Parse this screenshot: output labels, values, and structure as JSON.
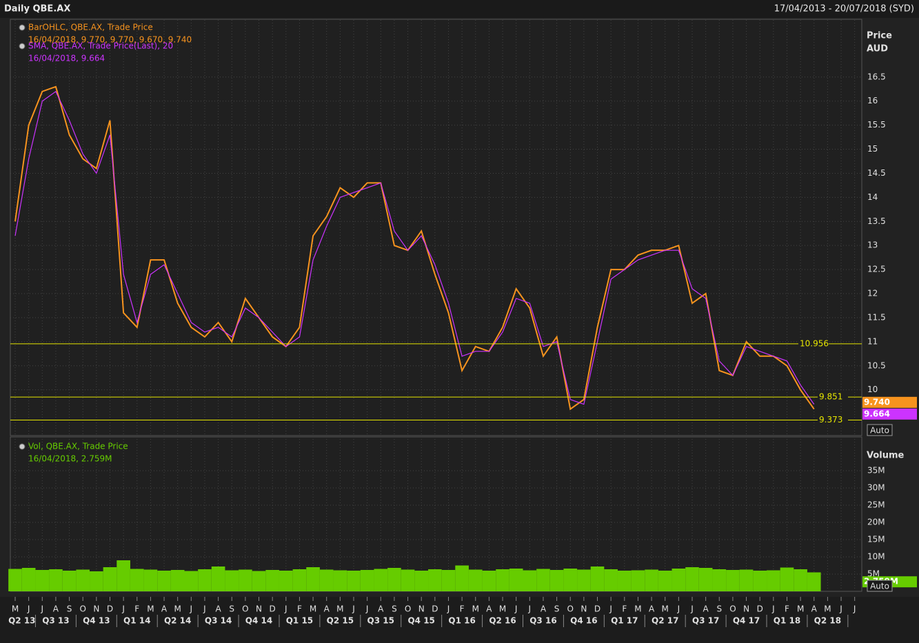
{
  "header": {
    "title": "Daily QBE.AX",
    "range": "17/04/2013 - 20/07/2018 (SYD)"
  },
  "chart_data": [
    {
      "type": "line",
      "axis_title": [
        "Price",
        "AUD"
      ],
      "categories": [
        "M",
        "J",
        "J",
        "A",
        "S",
        "O",
        "N",
        "D",
        "J",
        "F",
        "M",
        "A",
        "M",
        "J",
        "J",
        "A",
        "S",
        "O",
        "N",
        "D",
        "J",
        "F",
        "M",
        "A",
        "M",
        "J",
        "J",
        "A",
        "S",
        "O",
        "N",
        "D",
        "J",
        "F",
        "M",
        "A",
        "M",
        "J",
        "J",
        "A",
        "S",
        "O",
        "N",
        "D",
        "J",
        "F",
        "M",
        "A",
        "M",
        "J",
        "J",
        "A",
        "S",
        "O",
        "N",
        "D",
        "J",
        "F",
        "M",
        "A",
        "M",
        "J",
        "J"
      ],
      "quarters": [
        "Q2 13",
        "Q3 13",
        "Q4 13",
        "Q1 14",
        "Q2 14",
        "Q3 14",
        "Q4 14",
        "Q1 15",
        "Q2 15",
        "Q3 15",
        "Q4 15",
        "Q1 16",
        "Q2 16",
        "Q3 16",
        "Q4 16",
        "Q1 17",
        "Q2 17",
        "Q3 17",
        "Q4 17",
        "Q1 18",
        "Q2 18"
      ],
      "series": [
        {
          "name": "BarOHLC, QBE.AX, Trade Price",
          "legend_value": "16/04/2018, 9.770, 9.770, 9.670, 9.740",
          "color": "#f7931e",
          "values": [
            13.5,
            15.5,
            16.2,
            16.3,
            15.3,
            14.8,
            14.6,
            15.6,
            11.6,
            11.3,
            12.7,
            12.7,
            11.8,
            11.3,
            11.1,
            11.4,
            11.0,
            11.9,
            11.5,
            11.1,
            10.9,
            11.3,
            13.2,
            13.6,
            14.2,
            14.0,
            14.3,
            14.3,
            13.0,
            12.9,
            13.3,
            12.4,
            11.6,
            10.4,
            10.9,
            10.8,
            11.3,
            12.1,
            11.7,
            10.7,
            11.1,
            9.6,
            9.8,
            11.3,
            12.5,
            12.5,
            12.8,
            12.9,
            12.9,
            13.0,
            11.8,
            12.0,
            10.4,
            10.3,
            11.0,
            10.7,
            10.7,
            10.5,
            10.0,
            9.6,
            null,
            null,
            null
          ]
        },
        {
          "name": "SMA, QBE.AX, Trade Price(Last),  20",
          "legend_value": "16/04/2018, 9.664",
          "color": "#cc33ff",
          "values": [
            13.2,
            14.8,
            16.0,
            16.2,
            15.6,
            14.9,
            14.5,
            15.3,
            12.4,
            11.4,
            12.4,
            12.6,
            12.0,
            11.4,
            11.2,
            11.3,
            11.1,
            11.7,
            11.5,
            11.2,
            10.9,
            11.1,
            12.7,
            13.4,
            14.0,
            14.1,
            14.2,
            14.3,
            13.3,
            12.9,
            13.2,
            12.6,
            11.8,
            10.7,
            10.8,
            10.8,
            11.2,
            11.9,
            11.8,
            10.9,
            11.0,
            9.8,
            9.7,
            11.0,
            12.3,
            12.5,
            12.7,
            12.8,
            12.9,
            12.9,
            12.1,
            11.9,
            10.6,
            10.3,
            10.9,
            10.8,
            10.7,
            10.6,
            10.1,
            9.7,
            null,
            null,
            null
          ]
        }
      ],
      "ylim": [
        9.05,
        17.7
      ],
      "yticks": [
        10,
        10.5,
        11,
        11.5,
        12,
        12.5,
        13,
        13.5,
        14,
        14.5,
        15,
        15.5,
        16,
        16.5
      ],
      "grid": true,
      "levels": [
        10.956,
        9.851,
        9.373
      ],
      "level_color": "#e6e600",
      "last_values": [
        {
          "value": 9.74,
          "label": "9.740"
        },
        {
          "value": 9.664,
          "label": "9.664"
        }
      ],
      "scale_button": "Auto"
    },
    {
      "type": "bar",
      "axis_title": "Volume",
      "series": [
        {
          "name": "Vol, QBE.AX, Trade Price",
          "legend_value": "16/04/2018, 2.759M",
          "color": "#66cc00",
          "values": [
            6500000,
            6800000,
            6200000,
            6400000,
            6000000,
            6300000,
            5800000,
            7000000,
            9000000,
            6500000,
            6300000,
            6000000,
            6200000,
            5900000,
            6400000,
            7200000,
            6100000,
            6300000,
            5900000,
            6200000,
            6000000,
            6400000,
            7000000,
            6300000,
            6100000,
            6000000,
            6200000,
            6500000,
            6800000,
            6300000,
            6000000,
            6400000,
            6200000,
            7500000,
            6300000,
            6000000,
            6400000,
            6600000,
            6100000,
            6500000,
            6200000,
            6600000,
            6300000,
            7200000,
            6400000,
            6000000,
            6100000,
            6300000,
            6000000,
            6600000,
            7000000,
            6800000,
            6400000,
            6200000,
            6300000,
            6000000,
            6100000,
            6900000,
            6400000,
            5500000,
            null,
            null,
            null
          ]
        }
      ],
      "ylim": [
        0,
        44400000
      ],
      "yticks": [
        {
          "value": 5000000,
          "label": "5M"
        },
        {
          "value": 10000000,
          "label": "10M"
        },
        {
          "value": 15000000,
          "label": "15M"
        },
        {
          "value": 20000000,
          "label": "20M"
        },
        {
          "value": 25000000,
          "label": "25M"
        },
        {
          "value": 30000000,
          "label": "30M"
        },
        {
          "value": 35000000,
          "label": "35M"
        }
      ],
      "grid": true,
      "last_values": [
        {
          "value": 2759000,
          "label": "2.759M"
        }
      ],
      "scale_button": "Auto"
    }
  ]
}
